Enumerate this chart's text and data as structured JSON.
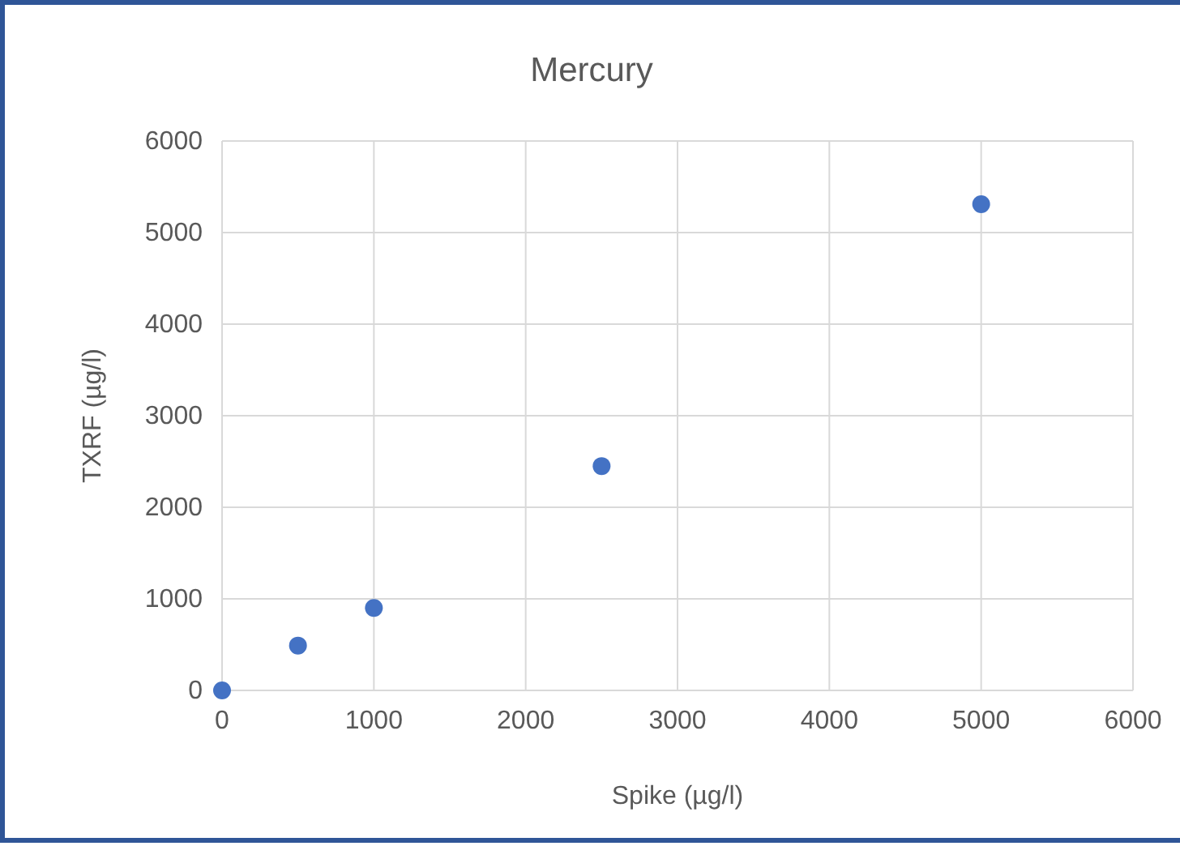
{
  "chart_data": {
    "type": "scatter",
    "title": "Mercury",
    "xlabel": "Spike (µg/l)",
    "ylabel": "TXRF (µg/l)",
    "x": [
      0,
      500,
      1000,
      2500,
      5000
    ],
    "series": [
      {
        "color": "#4472c4",
        "values": [
          0,
          490,
          900,
          2450,
          5310
        ]
      }
    ],
    "xlim": [
      0,
      6000
    ],
    "xticks": [
      0,
      1000,
      2000,
      3000,
      4000,
      5000,
      6000
    ],
    "ylim": [
      0,
      6000
    ],
    "yticks": [
      0,
      1000,
      2000,
      3000,
      4000,
      5000,
      6000
    ],
    "grid": true,
    "marker": "circle"
  }
}
